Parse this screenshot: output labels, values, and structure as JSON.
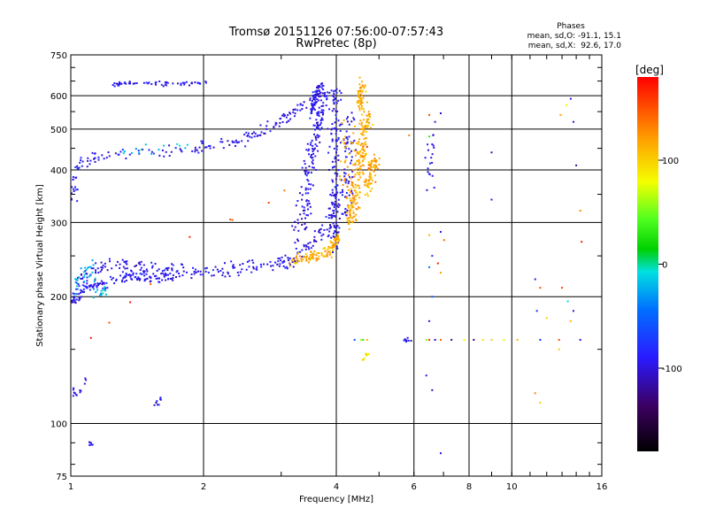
{
  "chart_data": {
    "type": "scatter",
    "title": "Tromsø 20151126 07:56:00-07:57:43",
    "subtitle": "RwPretec (8p)",
    "xlabel": "Frequency [MHz]",
    "ylabel": "Stationary phase Virtual Height [km]",
    "x_scale": "log",
    "y_scale": "log",
    "xlim": [
      1,
      16
    ],
    "ylim": [
      75,
      750
    ],
    "x_ticks": [
      1,
      2,
      4,
      6,
      8,
      10,
      16
    ],
    "y_ticks": [
      75,
      100,
      200,
      300,
      400,
      500,
      600,
      750
    ],
    "x_gridlines": [
      1,
      2,
      4,
      6,
      8,
      10
    ],
    "y_gridlines": [
      100,
      200,
      300,
      400,
      500,
      600
    ],
    "grid": true,
    "info": {
      "heading": "Phases",
      "line1": "mean, sd,O: -91.1, 15.1",
      "line2": "mean, sd,X:  92.6, 17.0"
    },
    "colorbar": {
      "label": "[deg]",
      "range": [
        -180,
        180
      ],
      "ticks": [
        100,
        0,
        -100
      ],
      "tick_labels": [
        "100",
        "0",
        "-100"
      ]
    },
    "series": [
      {
        "phase": -95,
        "traces": [
          {
            "x": [
              1.0,
              1.05,
              1.1,
              1.2,
              1.3,
              1.4,
              1.5,
              1.6,
              1.8,
              2.0,
              2.3,
              2.6,
              3.0,
              3.3
            ],
            "y": [
              195,
              205,
              210,
              215,
              220,
              222,
              221,
              222,
              225,
              228,
              232,
              236,
              240,
              245
            ],
            "spread": 0.035,
            "n": 230
          },
          {
            "x": [
              1.0,
              1.1,
              1.3,
              1.5,
              1.8
            ],
            "y": [
              205,
              230,
              240,
              235,
              232
            ],
            "spread": 0.04,
            "n": 90
          },
          {
            "x": [
              3.0,
              3.3,
              3.6,
              3.9,
              4.05
            ],
            "y": [
              240,
              255,
              275,
              310,
              360
            ],
            "spread": 0.04,
            "n": 70
          },
          {
            "x": [
              1.05,
              1.2,
              1.5,
              1.8,
              2.1,
              2.4,
              2.7,
              3.0,
              3.2,
              3.4
            ],
            "y": [
              420,
              430,
              440,
              445,
              455,
              470,
              490,
              520,
              545,
              580
            ],
            "spread": 0.035,
            "n": 140
          },
          {
            "x": [
              1.25,
              1.35,
              1.5,
              1.65,
              1.8,
              2.05
            ],
            "y": [
              640,
              642,
              640,
              640,
              642,
              645
            ],
            "spread": 0.012,
            "n": 60
          },
          {
            "x": [
              3.3,
              3.45,
              3.6,
              3.75
            ],
            "y": [
              280,
              380,
              500,
              600
            ],
            "spread": 0.06,
            "n": 160
          },
          {
            "x": [
              3.5,
              3.6,
              3.7
            ],
            "y": [
              550,
              600,
              640
            ],
            "spread": 0.03,
            "n": 70
          },
          {
            "x": [
              3.95,
              3.98,
              4.0
            ],
            "y": [
              260,
              400,
              640
            ],
            "spread": 0.05,
            "n": 130
          },
          {
            "x": [
              4.2,
              4.25,
              4.3
            ],
            "y": [
              300,
              420,
              560
            ],
            "spread": 0.05,
            "n": 70
          },
          {
            "x": [
              1.0,
              1.02,
              1.05
            ],
            "y": [
              330,
              380,
              420
            ],
            "spread": 0.04,
            "n": 30
          },
          {
            "x": [
              1.0,
              1.04,
              1.08
            ],
            "y": [
              120,
              115,
              130
            ],
            "spread": 0.03,
            "n": 14
          },
          {
            "x": [
              1.5,
              1.55,
              1.62
            ],
            "y": [
              112,
              111,
              114
            ],
            "spread": 0.02,
            "n": 8
          },
          {
            "x": [
              1.1,
              1.12
            ],
            "y": [
              88,
              90
            ],
            "spread": 0.02,
            "n": 6
          },
          {
            "x": [
              6.5,
              6.5,
              6.52
            ],
            "y": [
              350,
              420,
              480
            ],
            "spread": 0.04,
            "n": 18
          },
          {
            "x": [
              5.7,
              5.9
            ],
            "y": [
              158,
              158
            ],
            "spread": 0.01,
            "n": 10
          }
        ]
      },
      {
        "phase": 115,
        "traces": [
          {
            "x": [
              3.1,
              3.4,
              3.7,
              3.9,
              4.05
            ],
            "y": [
              245,
              246,
              250,
              258,
              280
            ],
            "spread": 0.03,
            "n": 110
          },
          {
            "x": [
              4.3,
              4.4,
              4.5,
              4.6,
              4.7
            ],
            "y": [
              300,
              340,
              400,
              470,
              560
            ],
            "spread": 0.05,
            "n": 200
          },
          {
            "x": [
              4.5,
              4.55,
              4.6
            ],
            "y": [
              560,
              610,
              650
            ],
            "spread": 0.03,
            "n": 50
          },
          {
            "x": [
              4.7,
              4.8,
              4.9
            ],
            "y": [
              360,
              400,
              430
            ],
            "spread": 0.04,
            "n": 70
          },
          {
            "x": [
              4.2,
              4.25
            ],
            "y": [
              350,
              520
            ],
            "spread": 0.05,
            "n": 30
          }
        ]
      },
      {
        "phase": -20,
        "traces": [
          {
            "x": [
              1.0,
              1.05,
              1.1,
              1.15,
              1.2
            ],
            "y": [
              205,
              220,
              240,
              200,
              210
            ],
            "spread": 0.03,
            "n": 40
          },
          {
            "x": [
              1.3,
              1.6,
              1.9
            ],
            "y": [
              440,
              450,
              455
            ],
            "spread": 0.03,
            "n": 14
          }
        ]
      },
      {
        "phase": 150,
        "traces": [
          {
            "x": [
              1.05,
              1.4,
              2.0,
              1.8,
              4.6,
              4.8,
              6.4,
              6.9
            ],
            "y": [
              150,
              200,
              300,
              260,
              470,
              380,
              520,
              260
            ],
            "spread": 0.03,
            "n": 14
          }
        ]
      },
      {
        "phase": 85,
        "traces": [
          {
            "x": [
              4.6,
              4.7
            ],
            "y": [
              140,
              150
            ],
            "spread": 0.03,
            "n": 8
          }
        ]
      }
    ],
    "isolated_points": [
      {
        "x": 4.4,
        "y": 158,
        "phase": -60
      },
      {
        "x": 4.55,
        "y": 158,
        "phase": 60
      },
      {
        "x": 4.6,
        "y": 158,
        "phase": 30
      },
      {
        "x": 4.7,
        "y": 158,
        "phase": 110
      },
      {
        "x": 6.4,
        "y": 158,
        "phase": 50
      },
      {
        "x": 6.5,
        "y": 158,
        "phase": 160
      },
      {
        "x": 6.7,
        "y": 158,
        "phase": -110
      },
      {
        "x": 6.9,
        "y": 158,
        "phase": 140
      },
      {
        "x": 7.3,
        "y": 158,
        "phase": -120
      },
      {
        "x": 7.8,
        "y": 158,
        "phase": 80
      },
      {
        "x": 8.2,
        "y": 158,
        "phase": -130
      },
      {
        "x": 8.6,
        "y": 158,
        "phase": 90
      },
      {
        "x": 9.0,
        "y": 158,
        "phase": 100
      },
      {
        "x": 9.6,
        "y": 158,
        "phase": 75
      },
      {
        "x": 10.3,
        "y": 158,
        "phase": 110
      },
      {
        "x": 11.6,
        "y": 158,
        "phase": -80
      },
      {
        "x": 12.8,
        "y": 158,
        "phase": 150
      },
      {
        "x": 14.3,
        "y": 158,
        "phase": -100
      },
      {
        "x": 6.5,
        "y": 540,
        "phase": 150
      },
      {
        "x": 6.7,
        "y": 520,
        "phase": -100
      },
      {
        "x": 6.9,
        "y": 545,
        "phase": -110
      },
      {
        "x": 6.5,
        "y": 480,
        "phase": 30
      },
      {
        "x": 6.6,
        "y": 460,
        "phase": -90
      },
      {
        "x": 6.5,
        "y": 280,
        "phase": 110
      },
      {
        "x": 6.9,
        "y": 285,
        "phase": -95
      },
      {
        "x": 6.6,
        "y": 250,
        "phase": -80
      },
      {
        "x": 6.8,
        "y": 240,
        "phase": 170
      },
      {
        "x": 6.5,
        "y": 235,
        "phase": -40
      },
      {
        "x": 6.9,
        "y": 228,
        "phase": 120
      },
      {
        "x": 6.6,
        "y": 200,
        "phase": -50
      },
      {
        "x": 6.5,
        "y": 175,
        "phase": -90
      },
      {
        "x": 6.4,
        "y": 130,
        "phase": -100
      },
      {
        "x": 6.6,
        "y": 120,
        "phase": -110
      },
      {
        "x": 6.9,
        "y": 85,
        "phase": -100
      },
      {
        "x": 9.0,
        "y": 440,
        "phase": -110
      },
      {
        "x": 9.0,
        "y": 340,
        "phase": -95
      },
      {
        "x": 11.3,
        "y": 220,
        "phase": -100
      },
      {
        "x": 11.6,
        "y": 210,
        "phase": 150
      },
      {
        "x": 11.4,
        "y": 185,
        "phase": -80
      },
      {
        "x": 12.0,
        "y": 178,
        "phase": 100
      },
      {
        "x": 11.3,
        "y": 118,
        "phase": 130
      },
      {
        "x": 11.6,
        "y": 112,
        "phase": 100
      },
      {
        "x": 12.9,
        "y": 540,
        "phase": 120
      },
      {
        "x": 13.3,
        "y": 570,
        "phase": 80
      },
      {
        "x": 13.6,
        "y": 590,
        "phase": -100
      },
      {
        "x": 13.8,
        "y": 520,
        "phase": -100
      },
      {
        "x": 14.0,
        "y": 410,
        "phase": -120
      },
      {
        "x": 14.3,
        "y": 320,
        "phase": 130
      },
      {
        "x": 14.4,
        "y": 270,
        "phase": 170
      },
      {
        "x": 13.0,
        "y": 210,
        "phase": 160
      },
      {
        "x": 13.4,
        "y": 195,
        "phase": -10
      },
      {
        "x": 13.8,
        "y": 185,
        "phase": -100
      },
      {
        "x": 13.6,
        "y": 175,
        "phase": 110
      },
      {
        "x": 12.8,
        "y": 150,
        "phase": 100
      }
    ]
  }
}
